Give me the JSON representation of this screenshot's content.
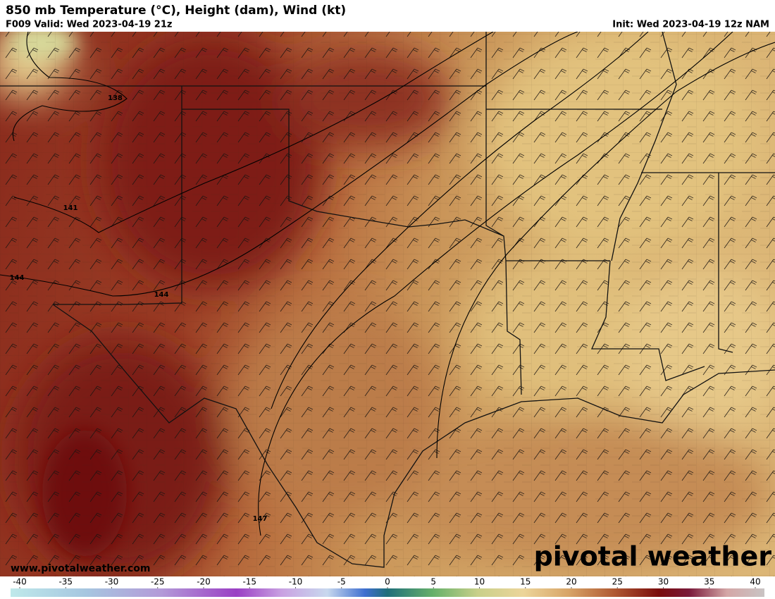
{
  "header": {
    "title": "850 mb Temperature (°C), Height (dam), Wind (kt)",
    "valid": "F009 Valid: Wed 2023-04-19 21z",
    "init": "Init: Wed 2023-04-19 12z NAM"
  },
  "map": {
    "contour_labels": [
      "138",
      "141",
      "144",
      "144",
      "147"
    ]
  },
  "footer": {
    "website": "www.pivotalweather.com",
    "logo": "pivotal weather"
  },
  "colorbar": {
    "ticks": [
      -40,
      -35,
      -30,
      -25,
      -20,
      -15,
      -10,
      -5,
      0,
      5,
      10,
      15,
      20,
      25,
      30,
      35,
      40
    ]
  }
}
